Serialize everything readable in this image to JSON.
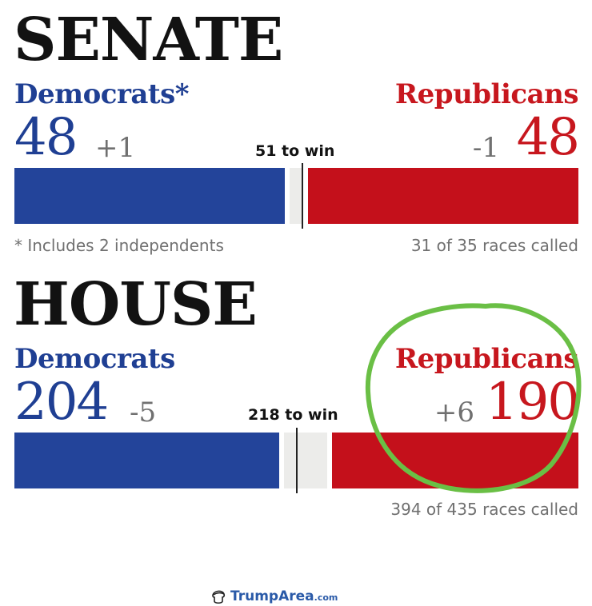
{
  "chart_data": [
    {
      "type": "bar",
      "title": "SENATE",
      "threshold_label": "51 to win",
      "threshold": 51,
      "total": 100,
      "series": [
        {
          "name": "Democrats*",
          "value": 48,
          "change": "+1",
          "color": "#23449a"
        },
        {
          "name": "Republicans",
          "value": 48,
          "change": "-1",
          "color": "#c4101b"
        }
      ],
      "footnote": "* Includes 2 independents",
      "races_called": "31 of 35 races called"
    },
    {
      "type": "bar",
      "title": "HOUSE",
      "threshold_label": "218 to win",
      "threshold": 218,
      "total": 435,
      "series": [
        {
          "name": "Democrats",
          "value": 204,
          "change": "-5",
          "color": "#23449a"
        },
        {
          "name": "Republicans",
          "value": 190,
          "change": "+6",
          "color": "#c4101b"
        }
      ],
      "races_called": "394 of 435 races called"
    }
  ],
  "annotation": {
    "type": "hand-drawn circle",
    "color": "#6abf45",
    "target": "House Republicans"
  },
  "watermark": {
    "brand": "TrumpArea",
    "suffix": ".com",
    "icon": "trump-head-icon"
  }
}
